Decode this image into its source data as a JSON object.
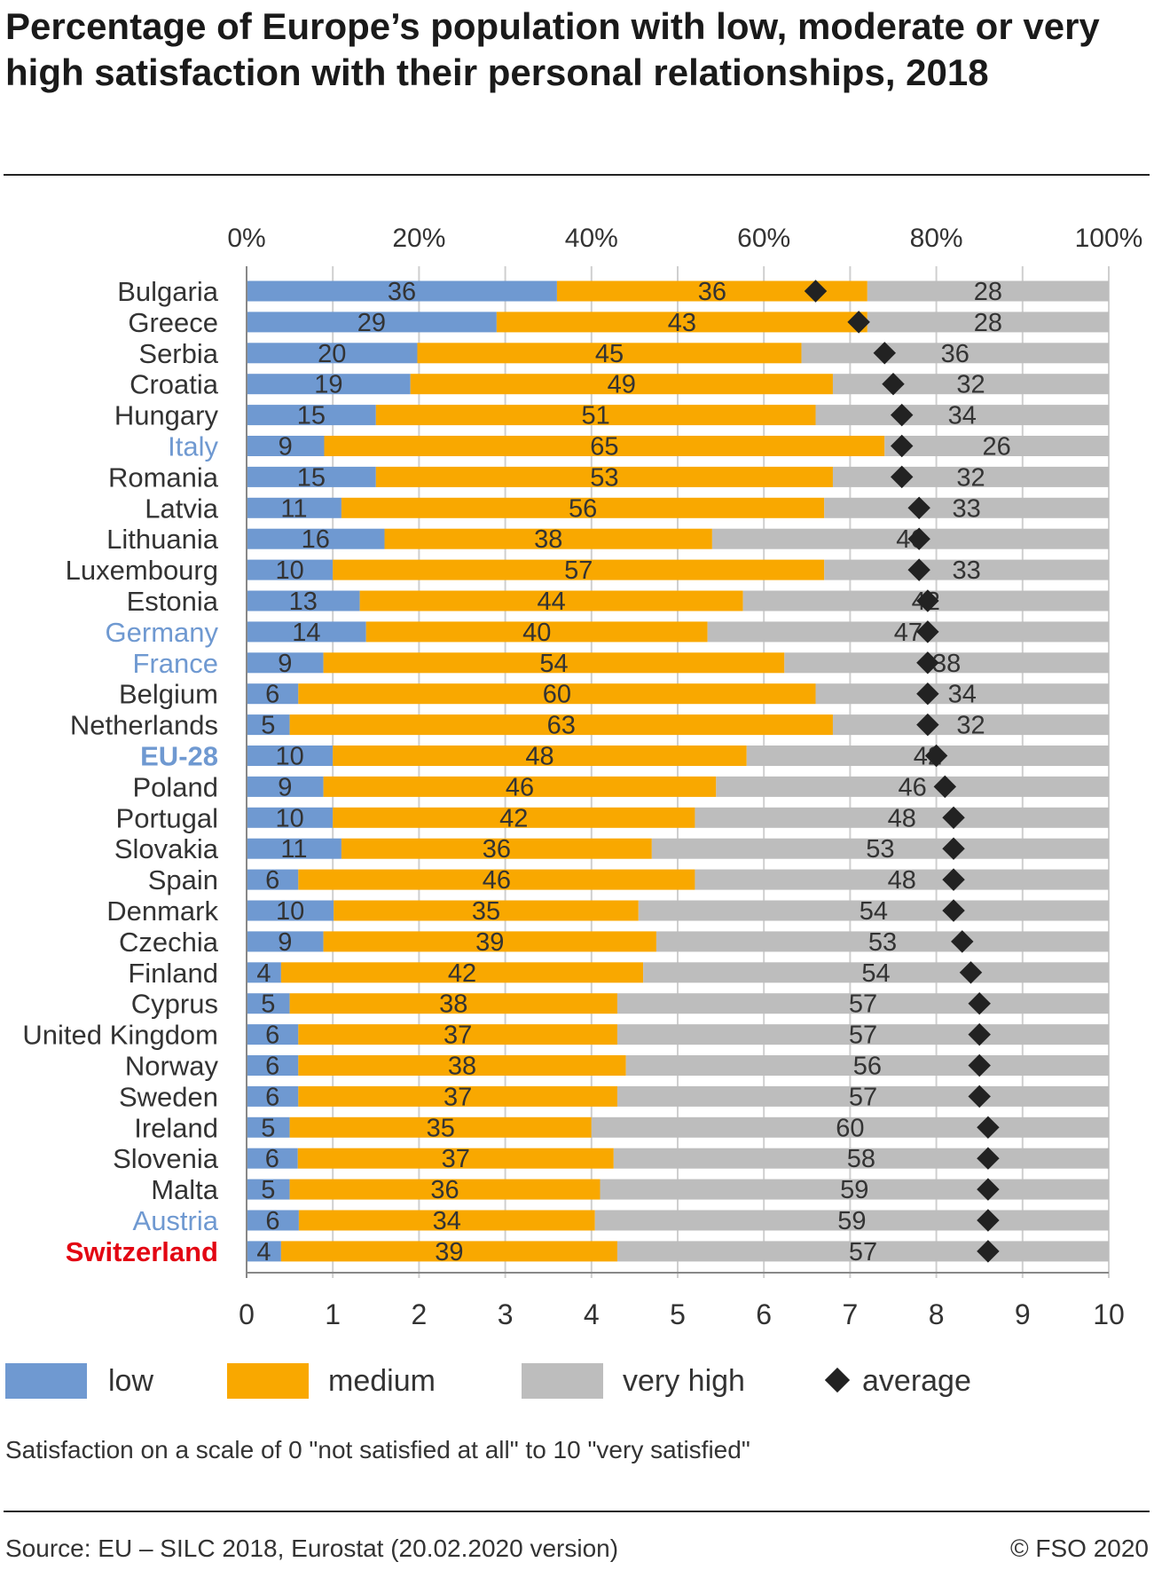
{
  "title": "Percentage of Europe’s population with low, moderate or very high satisfaction with their personal relationships, 2018",
  "legend": {
    "low": "low",
    "medium": "medium",
    "very_high": "very high",
    "average": "average"
  },
  "note": "Satisfaction on a scale of 0 \"not satisfied at all\" to 10 \"very satisfied\"",
  "source": "Source: EU – SILC 2018, Eurostat (20.02.2020 version)",
  "copyright": "© FSO 2020",
  "colors": {
    "low": "#6f99d1",
    "medium": "#f9a800",
    "very_high": "#bdbdbd",
    "average": "#222222",
    "highlight_blue": "#6f99d1",
    "highlight_red": "#e30613"
  },
  "chart_data": {
    "type": "bar",
    "orientation": "horizontal",
    "stacked": true,
    "top_axis": {
      "ticks": [
        "0%",
        "20%",
        "40%",
        "60%",
        "80%",
        "100%"
      ],
      "range": [
        0,
        100
      ]
    },
    "bottom_axis": {
      "ticks": [
        "0",
        "1",
        "2",
        "3",
        "4",
        "5",
        "6",
        "7",
        "8",
        "9",
        "10"
      ],
      "range": [
        0,
        10
      ]
    },
    "grid": true,
    "legend_position": "bottom",
    "categories": [
      "Bulgaria",
      "Greece",
      "Serbia",
      "Croatia",
      "Hungary",
      "Italy",
      "Romania",
      "Latvia",
      "Lithuania",
      "Luxembourg",
      "Estonia",
      "Germany",
      "France",
      "Belgium",
      "Netherlands",
      "EU-28",
      "Poland",
      "Portugal",
      "Slovakia",
      "Spain",
      "Denmark",
      "Czechia",
      "Finland",
      "Cyprus",
      "United Kingdom",
      "Norway",
      "Sweden",
      "Ireland",
      "Slovenia",
      "Malta",
      "Austria",
      "Switzerland"
    ],
    "category_styles": [
      "normal",
      "normal",
      "normal",
      "normal",
      "normal",
      "blue",
      "normal",
      "normal",
      "normal",
      "normal",
      "normal",
      "blue",
      "blue",
      "normal",
      "normal",
      "blue-bold",
      "normal",
      "normal",
      "normal",
      "normal",
      "normal",
      "normal",
      "normal",
      "normal",
      "normal",
      "normal",
      "normal",
      "normal",
      "normal",
      "normal",
      "blue",
      "red-bold"
    ],
    "series": [
      {
        "name": "low",
        "values": [
          36,
          29,
          20,
          19,
          15,
          9,
          15,
          11,
          16,
          10,
          13,
          14,
          9,
          6,
          5,
          10,
          9,
          10,
          11,
          6,
          10,
          9,
          4,
          5,
          6,
          6,
          6,
          5,
          6,
          5,
          6,
          4
        ]
      },
      {
        "name": "medium",
        "values": [
          36,
          43,
          45,
          49,
          51,
          65,
          53,
          56,
          38,
          57,
          44,
          40,
          54,
          60,
          63,
          48,
          46,
          42,
          36,
          46,
          35,
          39,
          42,
          38,
          37,
          38,
          37,
          35,
          37,
          36,
          34,
          39
        ]
      },
      {
        "name": "very high",
        "values": [
          28,
          28,
          36,
          32,
          34,
          26,
          32,
          33,
          46,
          33,
          42,
          47,
          38,
          34,
          32,
          42,
          46,
          48,
          53,
          48,
          54,
          53,
          54,
          57,
          57,
          56,
          57,
          60,
          58,
          59,
          59,
          57
        ]
      },
      {
        "name": "average",
        "values": [
          6.6,
          7.1,
          7.4,
          7.5,
          7.6,
          7.6,
          7.6,
          7.8,
          7.8,
          7.8,
          7.9,
          7.9,
          7.9,
          7.9,
          7.9,
          8.0,
          8.1,
          8.2,
          8.2,
          8.2,
          8.2,
          8.3,
          8.4,
          8.5,
          8.5,
          8.5,
          8.5,
          8.6,
          8.6,
          8.6,
          8.6,
          8.6
        ]
      }
    ]
  }
}
